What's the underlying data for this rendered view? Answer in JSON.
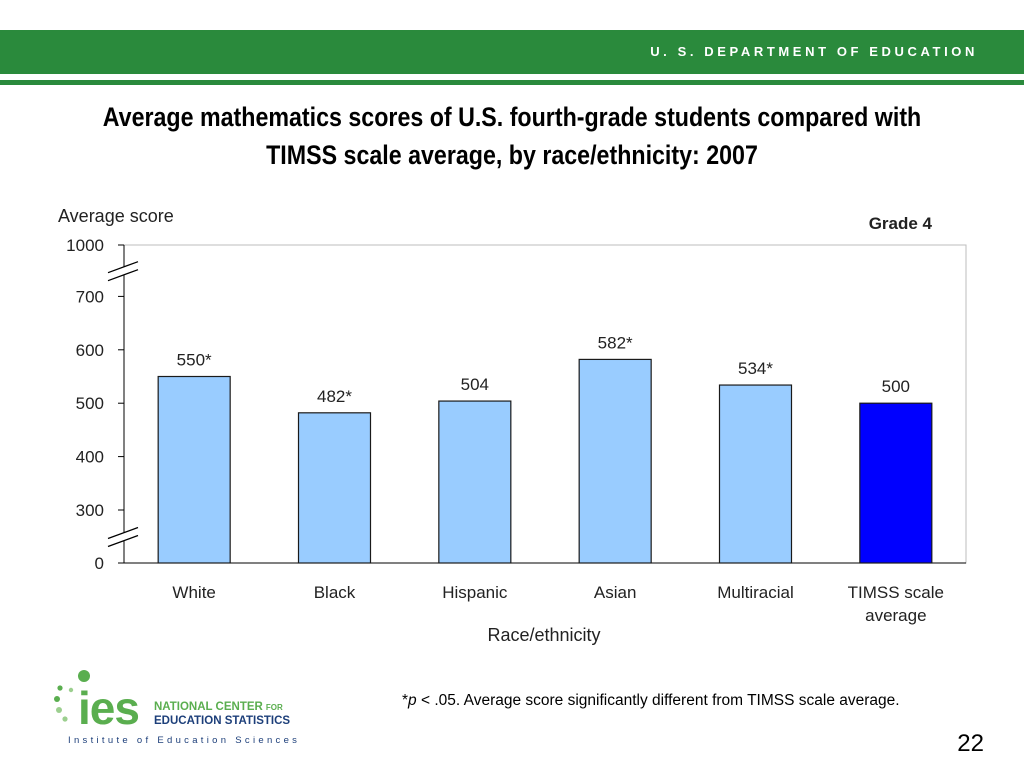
{
  "header": {
    "department": "U. S. DEPARTMENT OF EDUCATION",
    "title": "Average mathematics scores of U.S. fourth-grade students compared with TIMSS scale average, by race/ethnicity: 2007"
  },
  "chart_data": {
    "type": "bar",
    "corner_label": "Grade 4",
    "ylabel": "Average score",
    "xlabel": "Race/ethnicity",
    "categories": [
      "White",
      "Black",
      "Hispanic",
      "Asian",
      "Multiracial",
      "TIMSS scale average"
    ],
    "values": [
      550,
      482,
      504,
      582,
      534,
      500
    ],
    "data_labels": [
      "550*",
      "482*",
      "504",
      "582*",
      "534*",
      "500"
    ],
    "yticks": [
      0,
      300,
      400,
      500,
      600,
      700,
      1000
    ],
    "ylim": [
      0,
      1000
    ],
    "axis_breaks": [
      "0-300",
      "700-1000"
    ],
    "grid": false,
    "colors": {
      "bars": "#99ccff",
      "highlight_bar": "#0000ff",
      "bar_edge": "#1a1a1a"
    }
  },
  "footnote": {
    "symbol": "*",
    "p": "p",
    "text": " < .05. Average score significantly different from TIMSS scale average."
  },
  "logo": {
    "mark": "ies",
    "line1": "NATIONAL CENTER",
    "line1_small": "FOR",
    "line2": "EDUCATION STATISTICS",
    "tagline": "Institute of Education Sciences"
  },
  "page_number": "22",
  "colors": {
    "banner": "#2a8a3c",
    "banner_text": "#ffffff",
    "logo_green": "#5aae4f",
    "logo_blue": "#1d3f7a"
  }
}
